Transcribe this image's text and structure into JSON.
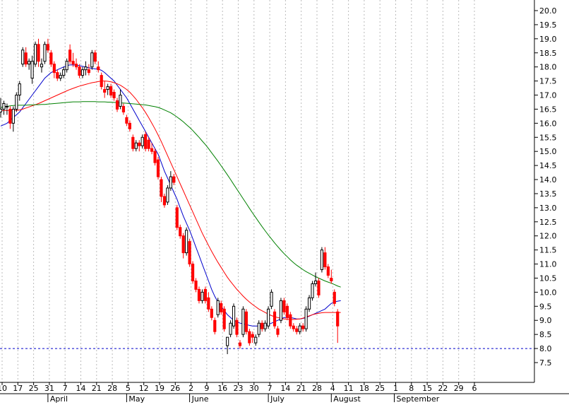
{
  "colors": {
    "up_candle": "#000000",
    "down_candle": "#ff0000",
    "ma_short": "#0000cc",
    "ma_medium": "#ff0000",
    "ma_long": "#008000",
    "reference_line": "#0000cc",
    "grid": "#bbbbbb"
  },
  "chart_data": {
    "type": "candlestick",
    "title": "",
    "xlabel": "",
    "ylabel": "",
    "ylim": [
      7.0,
      20.3
    ],
    "y_axis_position": "right",
    "grid": "vertical dotted lines at each weekly tick",
    "y_ticks": [
      "20.0",
      "19.5",
      "19.0",
      "18.5",
      "18.0",
      "17.5",
      "17.0",
      "16.5",
      "16.0",
      "15.5",
      "15.0",
      "14.5",
      "14.0",
      "13.5",
      "13.0",
      "12.5",
      "12.0",
      "11.5",
      "11.0",
      "10.5",
      "10.0",
      "9.5",
      "9.0",
      "8.5",
      "8.0",
      "7.5"
    ],
    "x_day_ticks": [
      "10",
      "17",
      "25",
      "31",
      "7",
      "14",
      "21",
      "28",
      "5",
      "12",
      "19",
      "26",
      "2",
      "9",
      "16",
      "23",
      "30",
      "7",
      "14",
      "21",
      "28",
      "4",
      "11",
      "18",
      "25",
      "1",
      "8",
      "15",
      "22",
      "29",
      "6"
    ],
    "month_labels": [
      "April",
      "May",
      "June",
      "July",
      "August",
      "September"
    ],
    "month_label_positions": [
      3,
      8,
      12,
      17,
      21,
      25
    ],
    "reference_line": {
      "value": 8.0,
      "style": "dashed"
    },
    "candles": [
      [
        16.4,
        16.9,
        16.2,
        16.5
      ],
      [
        16.5,
        16.8,
        16.3,
        16.7
      ],
      [
        16.6,
        16.7,
        16.3,
        16.6
      ],
      [
        16.5,
        16.6,
        15.8,
        16.0
      ],
      [
        16.0,
        16.6,
        15.7,
        16.5
      ],
      [
        16.5,
        17.1,
        16.4,
        17.0
      ],
      [
        17.0,
        17.5,
        16.8,
        17.4
      ],
      [
        18.1,
        18.7,
        18.0,
        18.6
      ],
      [
        18.5,
        18.7,
        18.0,
        18.1
      ],
      [
        18.1,
        18.3,
        17.9,
        18.2
      ],
      [
        17.6,
        18.4,
        17.4,
        18.2
      ],
      [
        18.1,
        18.9,
        18.0,
        18.8
      ],
      [
        18.8,
        19.0,
        18.0,
        18.2
      ],
      [
        18.0,
        18.3,
        17.8,
        18.1
      ],
      [
        18.2,
        18.9,
        18.1,
        18.8
      ],
      [
        18.8,
        19.0,
        18.5,
        18.6
      ],
      [
        18.5,
        18.6,
        18.0,
        18.1
      ],
      [
        18.1,
        18.2,
        17.6,
        17.8
      ],
      [
        17.8,
        17.9,
        17.5,
        17.6
      ],
      [
        17.6,
        17.8,
        17.5,
        17.7
      ],
      [
        17.7,
        18.0,
        17.6,
        17.9
      ],
      [
        17.9,
        18.3,
        17.8,
        18.2
      ],
      [
        18.6,
        18.8,
        18.1,
        18.2
      ],
      [
        18.2,
        18.5,
        18.0,
        18.1
      ],
      [
        18.1,
        18.3,
        17.9,
        18.0
      ],
      [
        18.0,
        18.1,
        17.6,
        17.7
      ],
      [
        17.7,
        18.0,
        17.6,
        17.9
      ],
      [
        17.9,
        18.2,
        17.7,
        18.0
      ],
      [
        17.9,
        18.1,
        17.7,
        17.8
      ],
      [
        18.0,
        18.6,
        17.9,
        18.5
      ],
      [
        18.5,
        18.6,
        18.1,
        18.2
      ],
      [
        18.0,
        18.2,
        17.8,
        17.9
      ],
      [
        17.7,
        17.8,
        17.2,
        17.3
      ],
      [
        17.2,
        17.5,
        16.9,
        17.1
      ],
      [
        17.2,
        17.4,
        17.0,
        17.3
      ],
      [
        17.3,
        17.4,
        16.9,
        17.0
      ],
      [
        17.1,
        17.2,
        16.8,
        16.9
      ],
      [
        16.8,
        16.9,
        16.4,
        16.5
      ],
      [
        16.6,
        17.2,
        16.5,
        17.0
      ],
      [
        16.6,
        16.7,
        16.3,
        16.4
      ],
      [
        16.2,
        16.3,
        15.9,
        16.0
      ],
      [
        16.0,
        16.1,
        15.7,
        15.8
      ],
      [
        15.5,
        15.6,
        15.0,
        15.1
      ],
      [
        15.1,
        15.4,
        15.0,
        15.3
      ],
      [
        15.3,
        15.4,
        15.0,
        15.2
      ],
      [
        15.2,
        15.6,
        15.1,
        15.5
      ],
      [
        15.6,
        15.7,
        15.0,
        15.1
      ],
      [
        15.4,
        15.5,
        15.0,
        15.1
      ],
      [
        15.1,
        15.3,
        14.9,
        15.0
      ],
      [
        15.0,
        15.1,
        14.5,
        14.6
      ],
      [
        14.7,
        14.8,
        14.0,
        14.1
      ],
      [
        14.0,
        14.1,
        13.2,
        13.4
      ],
      [
        13.4,
        13.5,
        13.0,
        13.1
      ],
      [
        13.2,
        13.8,
        13.1,
        13.7
      ],
      [
        13.7,
        14.3,
        13.6,
        14.1
      ],
      [
        14.1,
        14.2,
        13.8,
        13.9
      ],
      [
        13.0,
        13.1,
        12.2,
        12.3
      ],
      [
        12.3,
        12.4,
        11.9,
        12.0
      ],
      [
        12.0,
        12.1,
        11.2,
        11.4
      ],
      [
        11.4,
        12.3,
        11.3,
        12.2
      ],
      [
        11.8,
        11.9,
        10.9,
        11.0
      ],
      [
        11.0,
        11.1,
        10.3,
        10.4
      ],
      [
        10.4,
        10.5,
        10.0,
        10.1
      ],
      [
        10.1,
        10.2,
        9.6,
        9.7
      ],
      [
        9.7,
        10.1,
        9.6,
        10.0
      ],
      [
        10.1,
        10.2,
        9.6,
        9.7
      ],
      [
        9.8,
        10.0,
        9.3,
        9.4
      ],
      [
        9.4,
        9.5,
        9.0,
        9.1
      ],
      [
        9.0,
        9.1,
        8.5,
        8.6
      ],
      [
        9.2,
        9.8,
        9.1,
        9.7
      ],
      [
        9.6,
        9.7,
        9.2,
        9.3
      ],
      [
        9.4,
        9.5,
        8.6,
        8.7
      ],
      [
        8.1,
        8.4,
        7.8,
        8.4
      ],
      [
        8.5,
        9.0,
        8.4,
        8.9
      ],
      [
        8.8,
        9.6,
        8.7,
        9.5
      ],
      [
        9.0,
        9.1,
        8.4,
        8.5
      ],
      [
        8.2,
        8.3,
        8.0,
        8.1
      ],
      [
        8.5,
        9.5,
        8.4,
        9.4
      ],
      [
        9.3,
        9.4,
        8.5,
        8.6
      ],
      [
        8.6,
        8.7,
        8.1,
        8.2
      ],
      [
        8.5,
        8.6,
        8.2,
        8.4
      ],
      [
        8.2,
        8.5,
        8.1,
        8.4
      ],
      [
        8.5,
        9.0,
        8.4,
        8.9
      ],
      [
        8.9,
        9.0,
        8.6,
        8.7
      ],
      [
        8.7,
        9.0,
        8.6,
        8.9
      ],
      [
        8.8,
        9.5,
        8.7,
        9.4
      ],
      [
        9.5,
        10.1,
        9.4,
        10.0
      ],
      [
        9.3,
        9.4,
        8.7,
        8.8
      ],
      [
        8.7,
        8.8,
        8.4,
        8.5
      ],
      [
        9.0,
        9.8,
        8.9,
        9.7
      ],
      [
        9.7,
        9.8,
        9.2,
        9.3
      ],
      [
        9.5,
        9.6,
        9.0,
        9.1
      ],
      [
        9.2,
        9.3,
        8.7,
        8.8
      ],
      [
        8.8,
        8.9,
        8.6,
        8.7
      ],
      [
        8.7,
        8.8,
        8.5,
        8.6
      ],
      [
        8.6,
        8.9,
        8.5,
        8.8
      ],
      [
        8.8,
        8.9,
        8.6,
        8.7
      ],
      [
        8.7,
        9.5,
        8.6,
        9.4
      ],
      [
        9.4,
        9.9,
        9.3,
        9.8
      ],
      [
        9.8,
        10.4,
        9.7,
        10.3
      ],
      [
        10.3,
        10.7,
        10.2,
        10.4
      ],
      [
        10.4,
        10.5,
        9.8,
        9.9
      ],
      [
        10.8,
        11.6,
        10.7,
        11.5
      ],
      [
        11.4,
        11.6,
        10.8,
        10.9
      ],
      [
        10.9,
        11.0,
        10.5,
        10.6
      ],
      [
        10.5,
        10.8,
        10.3,
        10.4
      ],
      [
        10.0,
        10.1,
        9.5,
        9.6
      ],
      [
        9.3,
        9.4,
        8.2,
        8.8
      ]
    ],
    "series": [
      {
        "name": "",
        "color_key": "ma_short",
        "values": [
          15.9,
          15.95,
          16.0,
          16.1,
          16.2,
          16.3,
          16.4,
          16.55,
          16.7,
          16.85,
          17.0,
          17.15,
          17.3,
          17.45,
          17.6,
          17.7,
          17.8,
          17.85,
          17.9,
          17.95,
          18.0,
          18.05,
          18.07,
          18.07,
          18.06,
          18.05,
          18.02,
          18.0,
          17.97,
          17.95,
          17.93,
          17.92,
          17.88,
          17.8,
          17.7,
          17.6,
          17.5,
          17.35,
          17.2,
          17.05,
          16.9,
          16.7,
          16.5,
          16.3,
          16.1,
          15.9,
          15.7,
          15.5,
          15.3,
          15.1,
          14.9,
          14.6,
          14.3,
          14.05,
          13.8,
          13.55,
          13.3,
          13.0,
          12.7,
          12.45,
          12.2,
          11.9,
          11.6,
          11.3,
          11.0,
          10.7,
          10.4,
          10.1,
          9.85,
          9.65,
          9.5,
          9.35,
          9.2,
          9.1,
          9.0,
          8.95,
          8.9,
          8.88,
          8.85,
          8.82,
          8.8,
          8.8,
          8.8,
          8.8,
          8.82,
          8.85,
          8.9,
          8.95,
          9.0,
          9.05,
          9.1,
          9.1,
          9.1,
          9.08,
          9.05,
          9.05,
          9.07,
          9.1,
          9.15,
          9.2,
          9.25,
          9.3,
          9.35,
          9.4,
          9.5,
          9.6,
          9.65,
          9.68,
          9.7
        ]
      },
      {
        "name": "",
        "color_key": "ma_medium",
        "values": [
          16.45,
          16.45,
          16.45,
          16.45,
          16.45,
          16.46,
          16.47,
          16.5,
          16.54,
          16.58,
          16.62,
          16.66,
          16.7,
          16.75,
          16.8,
          16.85,
          16.9,
          16.95,
          17.0,
          17.05,
          17.1,
          17.15,
          17.2,
          17.24,
          17.28,
          17.32,
          17.35,
          17.38,
          17.41,
          17.44,
          17.46,
          17.48,
          17.5,
          17.5,
          17.49,
          17.47,
          17.44,
          17.4,
          17.35,
          17.28,
          17.2,
          17.1,
          16.98,
          16.85,
          16.7,
          16.55,
          16.38,
          16.2,
          16.0,
          15.8,
          15.58,
          15.35,
          15.1,
          14.85,
          14.6,
          14.35,
          14.1,
          13.85,
          13.6,
          13.35,
          13.1,
          12.85,
          12.6,
          12.35,
          12.1,
          11.88,
          11.66,
          11.45,
          11.25,
          11.06,
          10.88,
          10.7,
          10.53,
          10.38,
          10.24,
          10.1,
          9.98,
          9.86,
          9.75,
          9.65,
          9.56,
          9.48,
          9.4,
          9.34,
          9.28,
          9.22,
          9.17,
          9.13,
          9.1,
          9.07,
          9.05,
          9.04,
          9.03,
          9.03,
          9.04,
          9.05,
          9.08,
          9.12,
          9.16,
          9.2,
          9.23,
          9.25,
          9.27,
          9.28,
          9.28,
          9.28,
          9.28,
          9.28,
          9.28
        ]
      },
      {
        "name": "",
        "color_key": "ma_long",
        "values": [
          16.55,
          16.58,
          16.6,
          16.62,
          16.63,
          16.64,
          16.64,
          16.64,
          16.64,
          16.65,
          16.65,
          16.66,
          16.66,
          16.67,
          16.67,
          16.68,
          16.69,
          16.7,
          16.71,
          16.72,
          16.73,
          16.74,
          16.75,
          16.76,
          16.76,
          16.76,
          16.77,
          16.77,
          16.77,
          16.77,
          16.77,
          16.76,
          16.76,
          16.76,
          16.75,
          16.75,
          16.74,
          16.73,
          16.72,
          16.72,
          16.71,
          16.7,
          16.69,
          16.68,
          16.67,
          16.66,
          16.65,
          16.63,
          16.61,
          16.59,
          16.56,
          16.52,
          16.47,
          16.42,
          16.37,
          16.3,
          16.22,
          16.14,
          16.05,
          15.95,
          15.85,
          15.74,
          15.62,
          15.5,
          15.37,
          15.24,
          15.1,
          14.95,
          14.8,
          14.65,
          14.49,
          14.33,
          14.17,
          14.0,
          13.83,
          13.66,
          13.49,
          13.32,
          13.15,
          12.98,
          12.81,
          12.65,
          12.49,
          12.33,
          12.18,
          12.03,
          11.89,
          11.75,
          11.62,
          11.49,
          11.37,
          11.26,
          11.15,
          11.05,
          10.96,
          10.88,
          10.8,
          10.73,
          10.67,
          10.61,
          10.55,
          10.5,
          10.45,
          10.4,
          10.36,
          10.32,
          10.27,
          10.22,
          10.18
        ]
      }
    ]
  }
}
